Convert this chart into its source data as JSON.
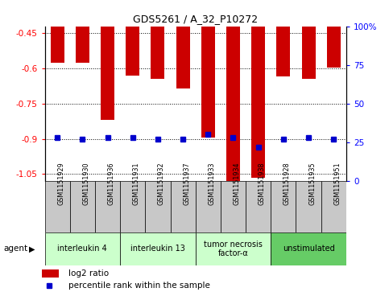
{
  "title": "GDS5261 / A_32_P10272",
  "samples": [
    "GSM1151929",
    "GSM1151930",
    "GSM1151936",
    "GSM1151931",
    "GSM1151932",
    "GSM1151937",
    "GSM1151933",
    "GSM1151934",
    "GSM1151938",
    "GSM1151928",
    "GSM1151935",
    "GSM1151951"
  ],
  "log2_ratio": [
    -0.575,
    -0.575,
    -0.82,
    -0.63,
    -0.645,
    -0.685,
    -0.895,
    -1.09,
    -1.065,
    -0.635,
    -0.645,
    -0.595
  ],
  "percentile": [
    28,
    27,
    28,
    28,
    27,
    27,
    30,
    28,
    22,
    27,
    28,
    27
  ],
  "groups": [
    {
      "label": "interleukin 4",
      "start": 0,
      "end": 3,
      "color": "#ccffcc"
    },
    {
      "label": "interleukin 13",
      "start": 3,
      "end": 6,
      "color": "#ccffcc"
    },
    {
      "label": "tumor necrosis\nfactor-α",
      "start": 6,
      "end": 9,
      "color": "#ccffcc"
    },
    {
      "label": "unstimulated",
      "start": 9,
      "end": 12,
      "color": "#66cc66"
    }
  ],
  "ylim_left": [
    -1.08,
    -0.42
  ],
  "ylim_right": [
    0,
    100
  ],
  "yticks_left": [
    -1.05,
    -0.9,
    -0.75,
    -0.6,
    -0.45
  ],
  "yticks_right": [
    0,
    25,
    50,
    75,
    100
  ],
  "bar_color": "#cc0000",
  "dot_color": "#0000cc",
  "sample_box_color": "#c8c8c8",
  "agent_label": "agent",
  "legend_log2": "log2 ratio",
  "legend_pct": "percentile rank within the sample",
  "fig_width": 4.83,
  "fig_height": 3.63,
  "dpi": 100
}
